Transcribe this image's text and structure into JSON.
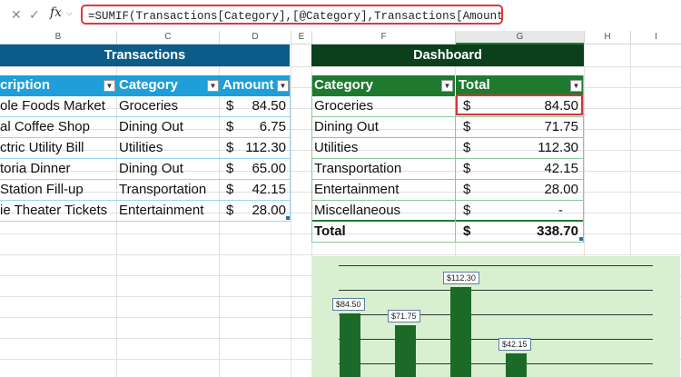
{
  "formula_bar": {
    "cancel_icon": "close-icon",
    "enter_icon": "check-icon",
    "fx_label": "fx",
    "formula": "=SUMIF(Transactions[Category],[@Category],Transactions[Amount])"
  },
  "columns": [
    "B",
    "C",
    "D",
    "E",
    "F",
    "G",
    "H",
    "I"
  ],
  "transactions": {
    "title": "Transactions",
    "headers": [
      "cription",
      "Category",
      "Amount"
    ],
    "rows": [
      {
        "desc": "ole Foods Market",
        "category": "Groceries",
        "cur": "$",
        "amount": "84.50"
      },
      {
        "desc": "al Coffee Shop",
        "category": "Dining Out",
        "cur": "$",
        "amount": "6.75"
      },
      {
        "desc": "ctric Utility Bill",
        "category": "Utilities",
        "cur": "$",
        "amount": "112.30"
      },
      {
        "desc": "toria Dinner",
        "category": "Dining Out",
        "cur": "$",
        "amount": "65.00"
      },
      {
        "desc": " Station Fill-up",
        "category": "Transportation",
        "cur": "$",
        "amount": "42.15"
      },
      {
        "desc": "ie Theater Tickets",
        "category": "Entertainment",
        "cur": "$",
        "amount": "28.00"
      }
    ]
  },
  "dashboard": {
    "title": "Dashboard",
    "headers": [
      "Category",
      "Total"
    ],
    "rows": [
      {
        "category": "Groceries",
        "cur": "$",
        "total": "84.50"
      },
      {
        "category": "Dining Out",
        "cur": "$",
        "total": "71.75"
      },
      {
        "category": "Utilities",
        "cur": "$",
        "total": "112.30"
      },
      {
        "category": "Transportation",
        "cur": "$",
        "total": "42.15"
      },
      {
        "category": "Entertainment",
        "cur": "$",
        "total": "28.00"
      },
      {
        "category": "Miscellaneous",
        "cur": "$",
        "total": "-"
      }
    ],
    "total_row": {
      "label": "Total",
      "cur": "$",
      "total": "338.70"
    }
  },
  "chart": {
    "bars": [
      {
        "label": "$84.50",
        "value": 84.5
      },
      {
        "label": "$71.75",
        "value": 71.75
      },
      {
        "label": "$112.30",
        "value": 112.3
      },
      {
        "label": "$42.15",
        "value": 42.15
      }
    ]
  },
  "colors": {
    "transactions_banner": "#0c5c8a",
    "transactions_header": "#1e9fd9",
    "dashboard_banner": "#0c3f1b",
    "dashboard_header": "#1f7a30",
    "selection": "#d0363c",
    "chart_bg": "#d8f0cf",
    "bar": "#1c6a28"
  }
}
